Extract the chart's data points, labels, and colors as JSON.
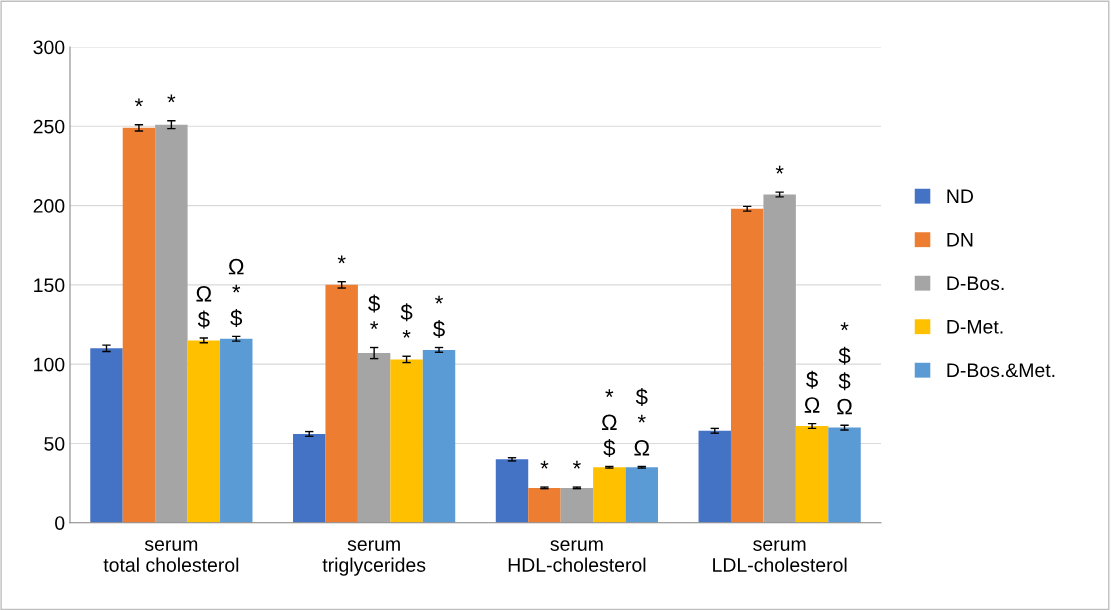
{
  "chart_data": {
    "type": "bar",
    "categories": [
      "serum total cholesterol",
      "serum triglycerides",
      "serum HDL-cholesterol",
      "serum LDL-cholesterol"
    ],
    "series": [
      {
        "name": "ND",
        "color": "#4472c4",
        "values": [
          110,
          56,
          40,
          58
        ],
        "errors": [
          2,
          1.5,
          1,
          1.5
        ]
      },
      {
        "name": "DN",
        "color": "#ed7d31",
        "values": [
          249,
          150,
          22,
          198
        ],
        "errors": [
          2,
          2,
          0.5,
          1.5
        ],
        "value_labels": [
          "*",
          "*",
          "*",
          null
        ]
      },
      {
        "name": "D-Bos.",
        "color": "#a5a5a5",
        "values": [
          251,
          107,
          22,
          207
        ],
        "errors": [
          2.5,
          3.5,
          0.5,
          1.5
        ],
        "value_labels": [
          "*",
          "$\n*",
          "*",
          "*"
        ]
      },
      {
        "name": "D-Met.",
        "color": "#ffc000",
        "values": [
          115,
          103,
          35,
          61
        ],
        "errors": [
          1.5,
          2,
          0.5,
          1.5
        ],
        "value_labels": [
          "Ω\n$",
          "$\n*",
          "*\nΩ\n$",
          "$\nΩ"
        ]
      },
      {
        "name": "D-Bos.&Met.",
        "color": "#5b9bd5",
        "values": [
          116,
          109,
          35,
          60
        ],
        "errors": [
          1.5,
          1.5,
          0.5,
          1.5
        ],
        "value_labels": [
          "Ω\n*\n$",
          "*\n$",
          "$\n*\nΩ",
          "*\n$\n$\nΩ"
        ]
      }
    ],
    "ylim": [
      0,
      300
    ],
    "yticks": [
      0,
      50,
      100,
      150,
      200,
      250,
      300
    ],
    "grid": "y",
    "legend": "right"
  }
}
